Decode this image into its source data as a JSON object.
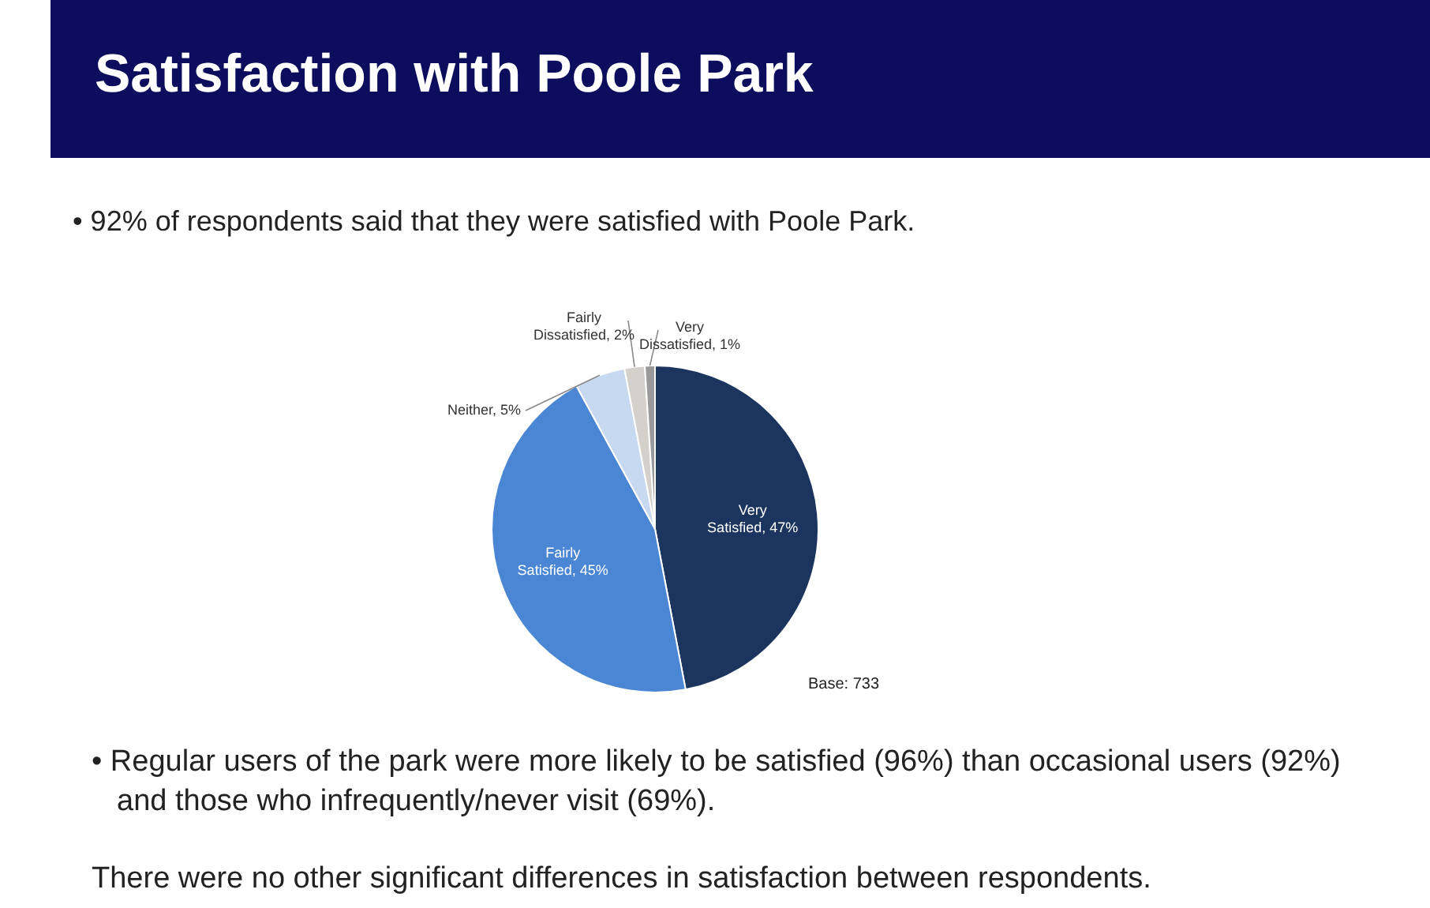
{
  "chart_data": {
    "type": "pie",
    "title": "Satisfaction with Poole Park",
    "subtitle": "• 92% of respondents said that they were satisfied with Poole Park.",
    "categories": [
      "Very Satisfied",
      "Fairly Satisfied",
      "Neither",
      "Fairly Dissatisfied",
      "Very Dissatisfied"
    ],
    "values": [
      47,
      45,
      5,
      2,
      1
    ],
    "value_labels": [
      "47%",
      "45%",
      "5%",
      "2%",
      "1%"
    ],
    "colors": [
      "#1b355e",
      "#4a86d4",
      "#c6d9f0",
      "#d4d0cc",
      "#9a9a9a"
    ],
    "legend": false,
    "annotations": [
      "Base: 733",
      "• Regular users of the park were more likely to be satisfied (96%) than occasional users (92%) and those who infrequently/never visit (69%).",
      "There were no other significant differences in satisfaction between respondents."
    ]
  }
}
